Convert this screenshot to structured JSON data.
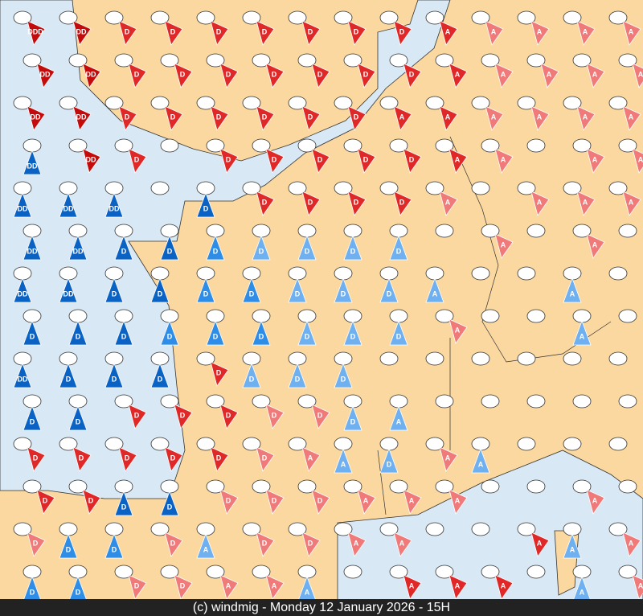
{
  "footer": "(c) windmig - Monday 12 January 2026 - 15H",
  "tone_colors": {
    "db": "#0a62c4",
    "mb": "#2e8de6",
    "lb": "#6fb0f0",
    "lr": "#f07a7a",
    "r": "#e02828",
    "dr": "#c40a0a"
  },
  "tones": [
    [
      "dr",
      "dr",
      "r",
      "r",
      "r",
      "r",
      "r",
      "r",
      "r",
      "r",
      "lr",
      "lr",
      "lr",
      "lr"
    ],
    [
      "dr",
      "dr",
      "r",
      "r",
      "r",
      "r",
      "r",
      "r",
      "r",
      "r",
      "lr",
      "lr",
      "lr",
      "lr"
    ],
    [
      "dr",
      "dr",
      "r",
      "r",
      "r",
      "r",
      "r",
      "r",
      "r",
      "r",
      "lr",
      "lr",
      "lr",
      "lr"
    ],
    [
      "db",
      "dr",
      "r",
      null,
      "r",
      "r",
      "r",
      "r",
      "r",
      "r",
      "lr",
      null,
      "lr",
      "lr"
    ],
    [
      "db",
      "db",
      "db",
      null,
      "db",
      "r",
      "r",
      "r",
      "r",
      "lr",
      null,
      "lr",
      "lr",
      "lr"
    ],
    [
      "db",
      "db",
      "db",
      "db",
      "mb",
      "lb",
      "lb",
      "lb",
      "lb",
      null,
      "lr",
      null,
      "lr",
      null
    ],
    [
      "db",
      "db",
      "db",
      "db",
      "mb",
      "mb",
      "lb",
      "lb",
      "lb",
      "lb",
      null,
      null,
      "lb",
      null
    ],
    [
      "db",
      "db",
      "db",
      "mb",
      "mb",
      "mb",
      "lb",
      "lb",
      "lb",
      "lr",
      null,
      null,
      "lb",
      null
    ],
    [
      "db",
      "db",
      "db",
      "db",
      "r",
      "lb",
      "lb",
      "lb",
      null,
      null,
      null,
      null,
      null,
      null
    ],
    [
      "db",
      "db",
      "r",
      "r",
      "r",
      "lr",
      "lr",
      "lb",
      "lb",
      null,
      null,
      null,
      null,
      null
    ],
    [
      "r",
      "r",
      "r",
      "r",
      "r",
      "lr",
      "lr",
      "lb",
      "lb",
      "lr",
      "lb",
      null,
      null,
      null
    ],
    [
      "r",
      "r",
      "db",
      "db",
      "lr",
      "lr",
      "lr",
      "lr",
      "lr",
      "lr",
      null,
      null,
      "lr",
      null
    ],
    [
      "lr",
      "mb",
      "mb",
      "lr",
      "lb",
      "lr",
      "lr",
      "lr",
      "lr",
      null,
      null,
      "r",
      "lb",
      "lr"
    ],
    [
      "mb",
      "mb",
      "lr",
      "lr",
      "lr",
      "lr",
      "lb",
      null,
      "r",
      "r",
      "r",
      null,
      "lb",
      "lr"
    ]
  ],
  "labels": [
    [
      "DDD",
      "DD",
      "D",
      "D",
      "D",
      "D",
      "D",
      "D",
      "D",
      "A",
      "A",
      "A",
      "A",
      "A"
    ],
    [
      "DD",
      "DD",
      "D",
      "D",
      "D",
      "D",
      "D",
      "D",
      "D",
      "A",
      "A",
      "A",
      "A",
      "A"
    ],
    [
      "DD",
      "DD",
      "D",
      "D",
      "D",
      "D",
      "D",
      "D",
      "A",
      "A",
      "A",
      "A",
      "A",
      "A"
    ],
    [
      "DD",
      "DD",
      "D",
      null,
      "D",
      "D",
      "D",
      "D",
      "D",
      "A",
      "A",
      null,
      "A",
      "A"
    ],
    [
      "DD",
      "DD",
      "DD",
      null,
      "D",
      "D",
      "D",
      "D",
      "D",
      "A",
      null,
      "A",
      "A",
      "A"
    ],
    [
      "DD",
      "DD",
      "D",
      "D",
      "D",
      "D",
      "D",
      "D",
      "D",
      null,
      "A",
      null,
      "A",
      null
    ],
    [
      "DD",
      "DD",
      "D",
      "D",
      "D",
      "D",
      "D",
      "D",
      "D",
      "A",
      null,
      null,
      "A",
      null
    ],
    [
      "D",
      "D",
      "D",
      "D",
      "D",
      "D",
      "D",
      "D",
      "D",
      "A",
      null,
      null,
      "A",
      null
    ],
    [
      "DD",
      "D",
      "D",
      "D",
      "D",
      "D",
      "D",
      "D",
      null,
      null,
      null,
      null,
      null,
      null
    ],
    [
      "D",
      "D",
      "D",
      "D",
      "D",
      "D",
      "D",
      "D",
      "A",
      null,
      null,
      null,
      null,
      null
    ],
    [
      "D",
      "D",
      "D",
      "D",
      "D",
      "D",
      "A",
      "A",
      "D",
      "A",
      "A",
      null,
      null,
      null
    ],
    [
      "D",
      "D",
      "D",
      "D",
      "D",
      "D",
      "D",
      "A",
      "A",
      "A",
      null,
      null,
      "A",
      null
    ],
    [
      "D",
      "D",
      "D",
      "D",
      "A",
      "D",
      "D",
      "A",
      "A",
      null,
      null,
      "A",
      "A",
      "A"
    ],
    [
      "D",
      "D",
      "D",
      "D",
      "A",
      "A",
      "A",
      null,
      "A",
      "A",
      "A",
      null,
      "A",
      "A"
    ]
  ]
}
